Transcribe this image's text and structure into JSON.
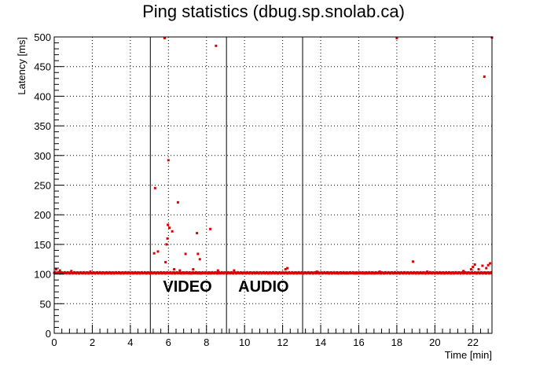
{
  "chart_data": {
    "type": "scatter",
    "title": "Ping statistics (dbug.sp.snolab.ca)",
    "xlabel": "Time [min]",
    "ylabel": "Latency [ms]",
    "xlim": [
      0,
      23
    ],
    "ylim": [
      0,
      500
    ],
    "x_ticks": [
      0,
      2,
      4,
      6,
      8,
      10,
      12,
      14,
      16,
      18,
      20,
      22
    ],
    "y_ticks": [
      0,
      50,
      100,
      150,
      200,
      250,
      300,
      350,
      400,
      450,
      500
    ],
    "grid": true,
    "marker_color": "#dd0000",
    "baseline_latency": 102,
    "dividers": [
      5.05,
      9.05,
      13.05
    ],
    "annotations": [
      {
        "text": "VIDEO",
        "x": 7.0,
        "y": 70
      },
      {
        "text": "AUDIO",
        "x": 11.0,
        "y": 70
      }
    ],
    "outliers": [
      [
        0.1,
        108
      ],
      [
        0.3,
        106
      ],
      [
        0.9,
        105
      ],
      [
        1.9,
        104
      ],
      [
        5.25,
        135
      ],
      [
        5.3,
        245
      ],
      [
        5.45,
        138
      ],
      [
        5.8,
        498
      ],
      [
        5.85,
        120
      ],
      [
        5.9,
        150
      ],
      [
        5.95,
        160
      ],
      [
        5.97,
        183
      ],
      [
        6.0,
        292
      ],
      [
        6.05,
        178
      ],
      [
        6.2,
        172
      ],
      [
        6.3,
        108
      ],
      [
        6.5,
        221
      ],
      [
        6.6,
        106
      ],
      [
        6.9,
        134
      ],
      [
        7.3,
        108
      ],
      [
        7.5,
        169
      ],
      [
        7.55,
        134
      ],
      [
        7.65,
        125
      ],
      [
        8.2,
        176
      ],
      [
        8.5,
        485
      ],
      [
        8.6,
        106
      ],
      [
        9.45,
        106
      ],
      [
        12.15,
        108
      ],
      [
        12.25,
        110
      ],
      [
        13.8,
        104
      ],
      [
        17.1,
        104
      ],
      [
        18.0,
        498
      ],
      [
        18.85,
        121
      ],
      [
        19.6,
        104
      ],
      [
        21.5,
        105
      ],
      [
        21.9,
        108
      ],
      [
        22.0,
        112
      ],
      [
        22.1,
        116
      ],
      [
        22.3,
        108
      ],
      [
        22.5,
        114
      ],
      [
        22.6,
        433
      ],
      [
        22.7,
        110
      ],
      [
        22.8,
        115
      ],
      [
        22.9,
        118
      ],
      [
        23.0,
        499
      ]
    ]
  }
}
